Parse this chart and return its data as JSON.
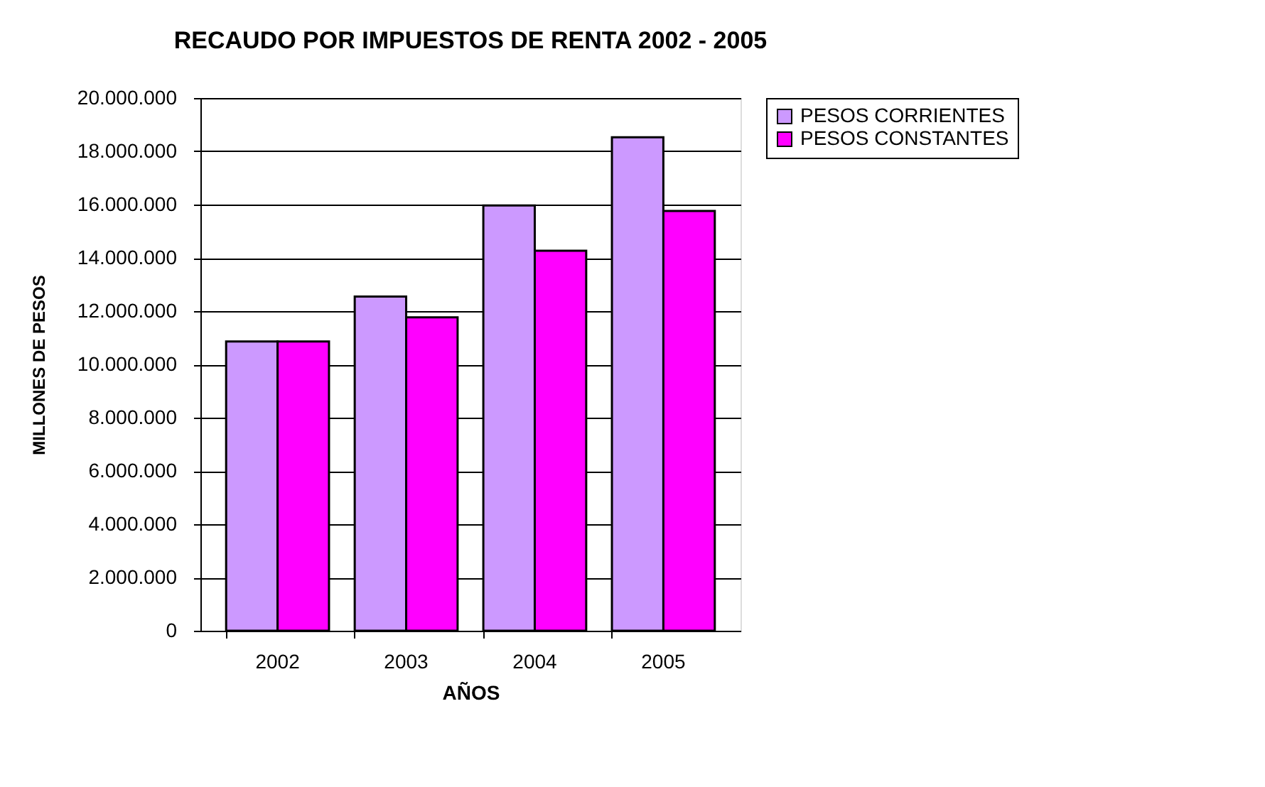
{
  "chart_data": {
    "type": "bar",
    "title": "RECAUDO POR IMPUESTOS DE RENTA 2002 - 2005",
    "xlabel": "AÑOS",
    "ylabel": "MILLONES DE PESOS",
    "categories": [
      "2002",
      "2003",
      "2004",
      "2005"
    ],
    "series": [
      {
        "name": "PESOS CORRIENTES",
        "color": "#cc99ff",
        "values": [
          10860000,
          12550000,
          15970000,
          18530000
        ]
      },
      {
        "name": "PESOS CONSTANTES",
        "color": "#ff00ff",
        "values": [
          10860000,
          11770000,
          14270000,
          15760000
        ]
      }
    ],
    "ylim": [
      0,
      20000000
    ],
    "yticks": [
      0,
      {
        "value": 2000000,
        "label": "2.000.000"
      },
      {
        "value": 4000000,
        "label": "4.000.000"
      },
      {
        "value": 6000000,
        "label": "6.000.000"
      },
      {
        "value": 8000000,
        "label": "8.000.000"
      },
      {
        "value": 10000000,
        "label": "10.000.000"
      },
      {
        "value": 12000000,
        "label": "12.000.000"
      },
      {
        "value": 14000000,
        "label": "14.000.000"
      },
      {
        "value": 16000000,
        "label": "16.000.000"
      },
      {
        "value": 18000000,
        "label": "18.000.000"
      },
      {
        "value": 20000000,
        "label": "20.000.000"
      }
    ],
    "grid": "y",
    "legend": "right"
  }
}
